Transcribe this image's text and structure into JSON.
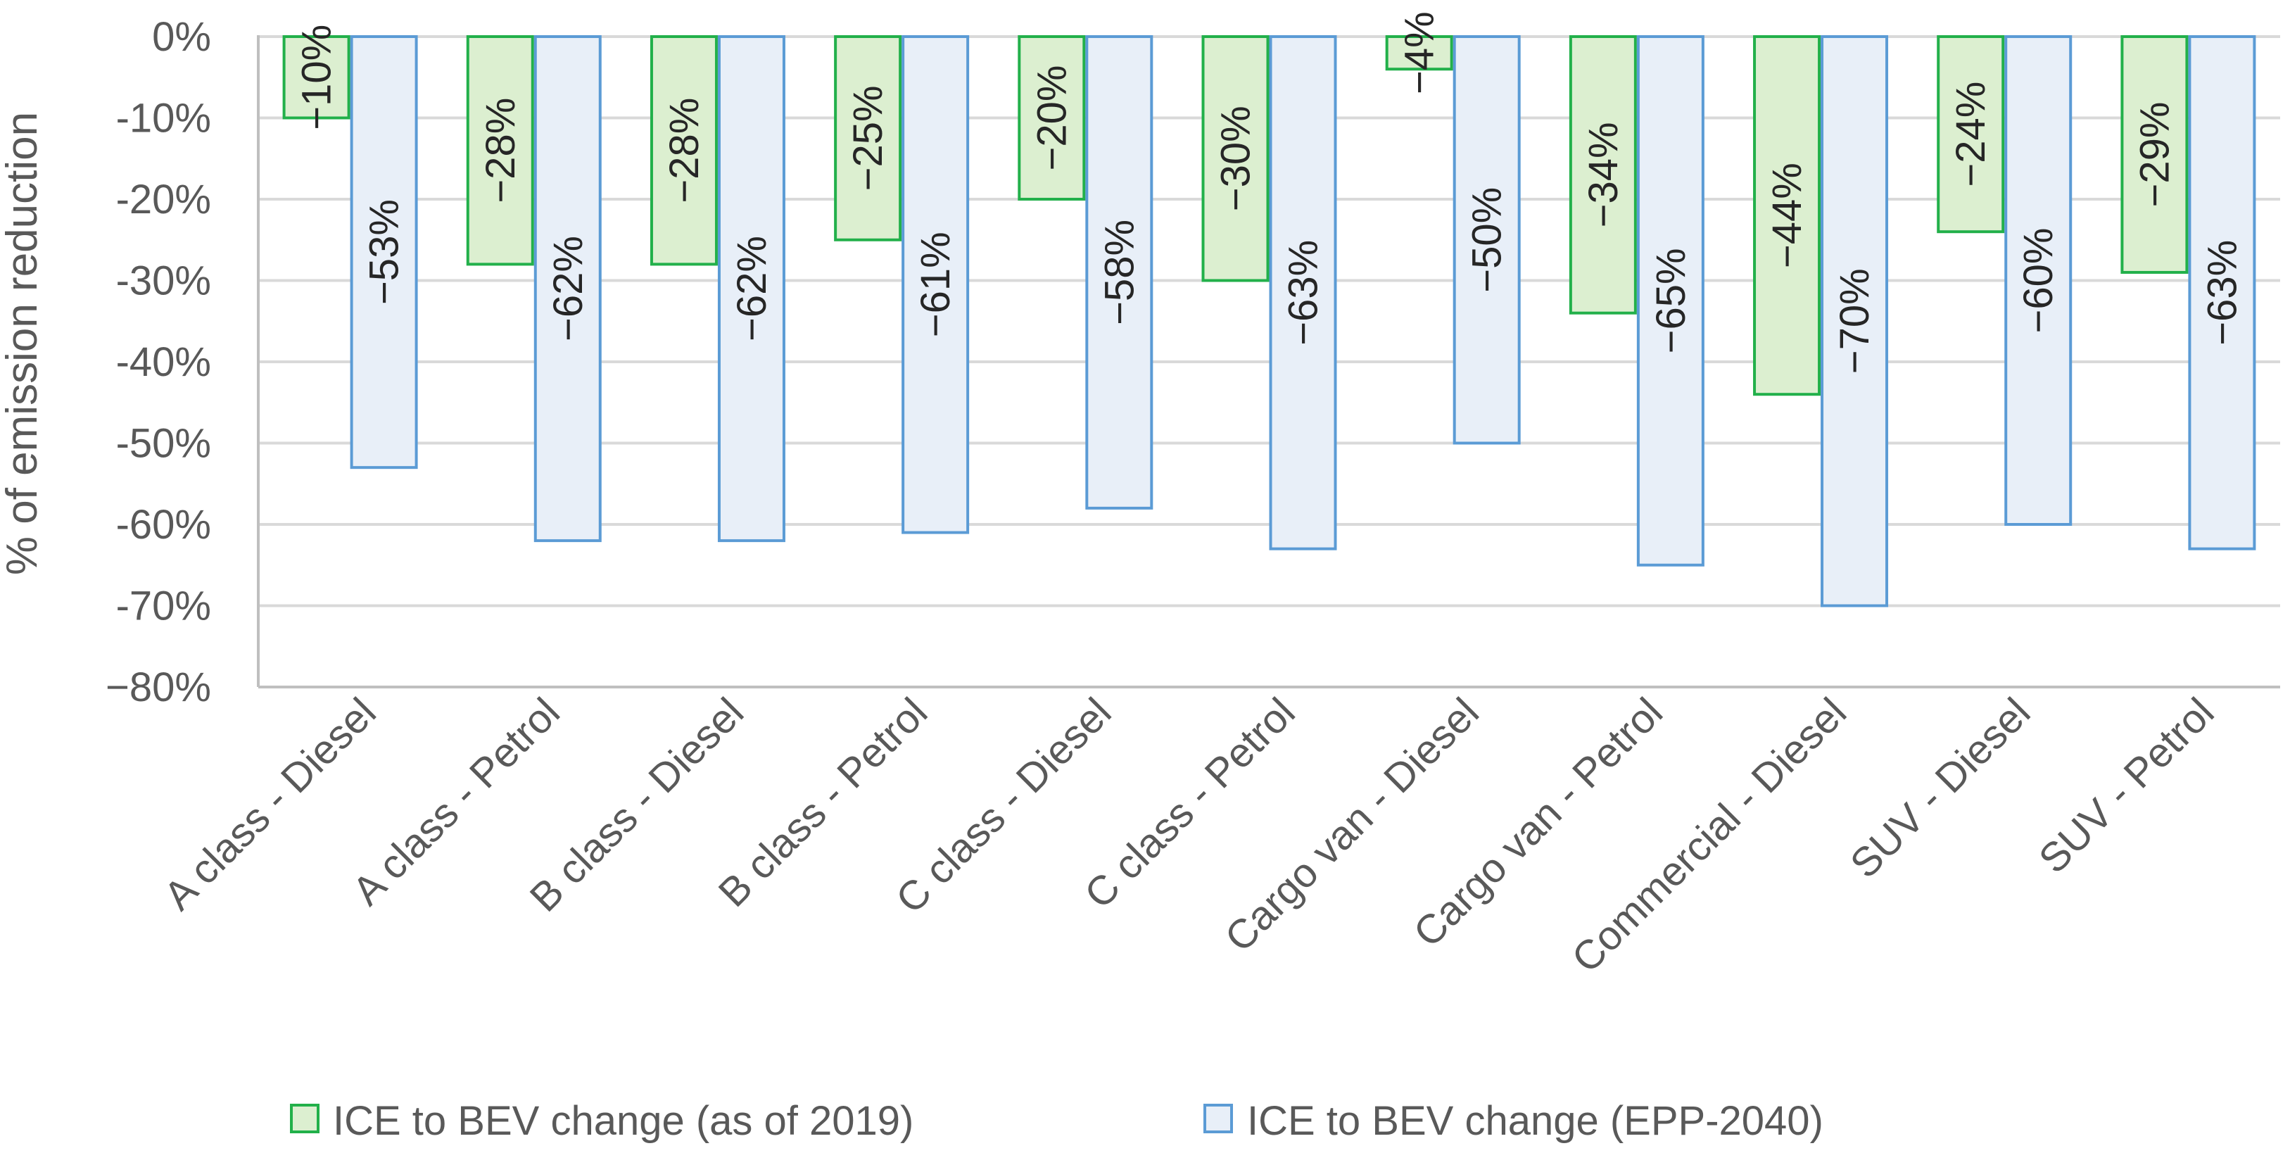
{
  "chart_data": {
    "type": "bar",
    "title": "",
    "xlabel": "",
    "ylabel": "% of emission reduction",
    "ylim": [
      -80,
      0
    ],
    "yticks": [
      0,
      -10,
      -20,
      -30,
      -40,
      -50,
      -60,
      -70,
      -80
    ],
    "ytick_labels": [
      "0%",
      "-10%",
      "-20%",
      "-30%",
      "-40%",
      "-50%",
      "-60%",
      "-70%",
      "−80%"
    ],
    "grid": true,
    "legend_position": "bottom",
    "categories": [
      "A class - Diesel",
      "A class - Petrol",
      "B class - Diesel",
      "B class - Petrol",
      "C class - Diesel",
      "C class - Petrol",
      "Cargo van - Diesel",
      "Cargo van - Petrol",
      "Commercial - Diesel",
      "SUV - Diesel",
      "SUV - Petrol"
    ],
    "series": [
      {
        "name": "ICE to BEV change (as of 2019)",
        "fill": "#dcefd0",
        "stroke": "#22b04a",
        "values": [
          -10,
          -28,
          -28,
          -25,
          -20,
          -30,
          -4,
          -34,
          -44,
          -24,
          -29
        ],
        "labels": [
          "−10%",
          "−28%",
          "−28%",
          "−25%",
          "−20%",
          "−30%",
          "−4%",
          "−34%",
          "−44%",
          "−24%",
          "−29%"
        ]
      },
      {
        "name": "ICE to BEV change (EPP-2040)",
        "fill": "#e8eff8",
        "stroke": "#5b9bd5",
        "values": [
          -53,
          -62,
          -62,
          -61,
          -58,
          -63,
          -50,
          -65,
          -70,
          -60,
          -63
        ],
        "labels": [
          "−53%",
          "−62%",
          "−62%",
          "−61%",
          "−58%",
          "−63%",
          "−50%",
          "−65%",
          "−70%",
          "−60%",
          "−63%"
        ]
      }
    ]
  }
}
